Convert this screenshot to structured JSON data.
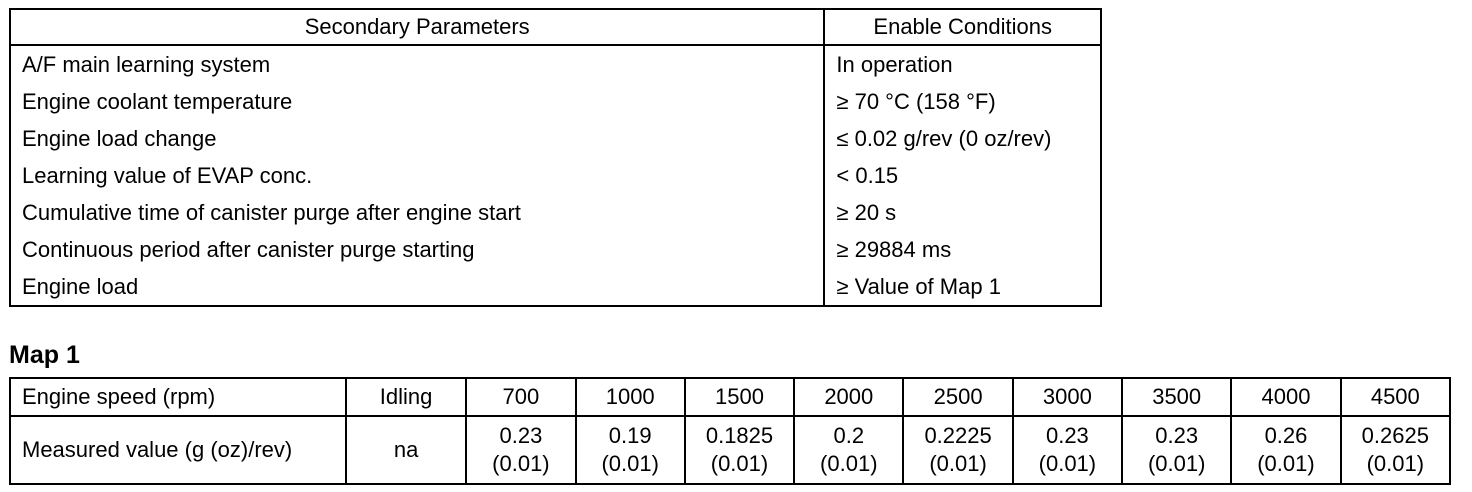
{
  "table1": {
    "headers": [
      "Secondary Parameters",
      "Enable Conditions"
    ],
    "rows": [
      {
        "param": "A/F main learning system",
        "cond": "In operation"
      },
      {
        "param": "Engine coolant temperature",
        "cond": "≥ 70 °C (158 °F)"
      },
      {
        "param": "Engine load change",
        "cond": "≤ 0.02 g/rev (0 oz/rev)"
      },
      {
        "param": "Learning value of EVAP conc.",
        "cond": "< 0.15"
      },
      {
        "param": "Cumulative time of canister purge after engine start",
        "cond": "≥ 20 s"
      },
      {
        "param": "Continuous period after canister purge starting",
        "cond": "≥ 29884 ms"
      },
      {
        "param": "Engine load",
        "cond": "≥ Value of Map 1"
      }
    ]
  },
  "map": {
    "title": "Map 1",
    "row1_label": "Engine speed (rpm)",
    "row2_label": "Measured value (g (oz)/rev)",
    "speeds": [
      "Idling",
      "700",
      "1000",
      "1500",
      "2000",
      "2500",
      "3000",
      "3500",
      "4000",
      "4500"
    ],
    "values": [
      {
        "main": "na",
        "sub": ""
      },
      {
        "main": "0.23",
        "sub": "(0.01)"
      },
      {
        "main": "0.19",
        "sub": "(0.01)"
      },
      {
        "main": "0.1825",
        "sub": "(0.01)"
      },
      {
        "main": "0.2",
        "sub": "(0.01)"
      },
      {
        "main": "0.2225",
        "sub": "(0.01)"
      },
      {
        "main": "0.23",
        "sub": "(0.01)"
      },
      {
        "main": "0.23",
        "sub": "(0.01)"
      },
      {
        "main": "0.26",
        "sub": "(0.01)"
      },
      {
        "main": "0.2625",
        "sub": "(0.01)"
      }
    ]
  }
}
